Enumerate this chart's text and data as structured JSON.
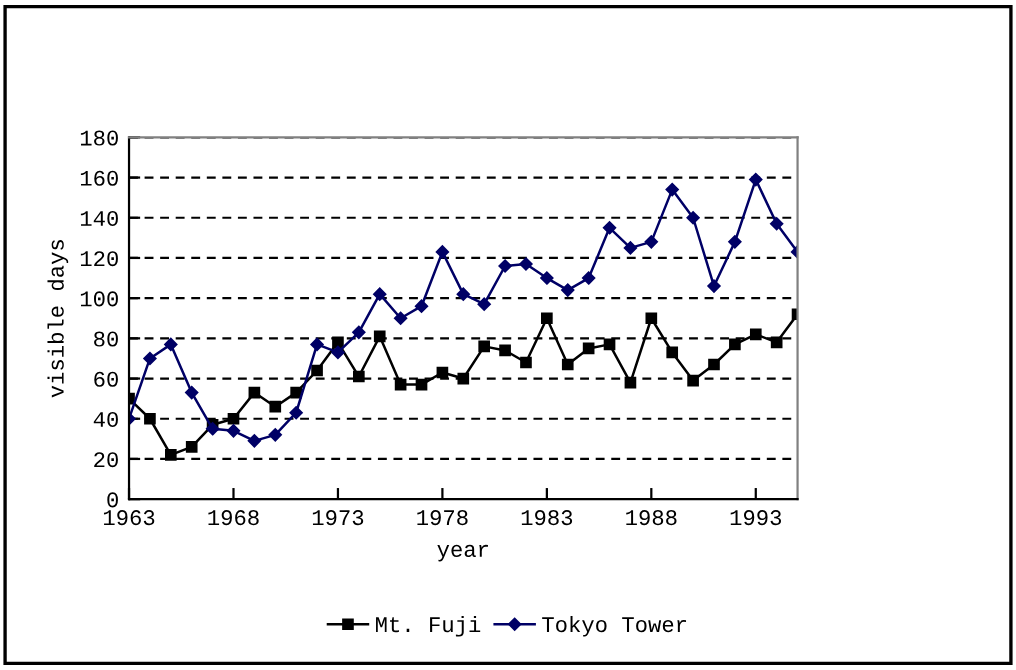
{
  "chart_data": {
    "type": "line",
    "xlabel": "year",
    "ylabel": "visible days",
    "x": [
      1963,
      1964,
      1965,
      1966,
      1967,
      1968,
      1969,
      1970,
      1971,
      1972,
      1973,
      1974,
      1975,
      1976,
      1977,
      1978,
      1979,
      1980,
      1981,
      1982,
      1983,
      1984,
      1985,
      1986,
      1987,
      1988,
      1989,
      1990,
      1991,
      1992,
      1993,
      1994,
      1995
    ],
    "series": [
      {
        "name": "Mt. Fuji",
        "color": "#000000",
        "marker": "square",
        "values": [
          50,
          40,
          22,
          26,
          37,
          40,
          53,
          46,
          53,
          64,
          78,
          61,
          81,
          57,
          57,
          63,
          60,
          76,
          74,
          68,
          90,
          67,
          75,
          77,
          58,
          90,
          73,
          59,
          67,
          77,
          82,
          78,
          92
        ]
      },
      {
        "name": "Tokyo Tower",
        "color": "#000066",
        "marker": "diamond",
        "values": [
          40,
          70,
          77,
          53,
          35,
          34,
          29,
          32,
          43,
          77,
          73,
          83,
          102,
          90,
          96,
          123,
          102,
          97,
          116,
          117,
          110,
          104,
          110,
          135,
          125,
          128,
          154,
          140,
          106,
          128,
          159,
          137,
          123
        ]
      }
    ],
    "xlim": [
      1963,
      1995
    ],
    "xticks": [
      1963,
      1968,
      1973,
      1978,
      1983,
      1988,
      1993
    ],
    "ylim": [
      0,
      180
    ],
    "yticks": [
      0,
      20,
      40,
      60,
      80,
      100,
      120,
      140,
      160,
      180
    ],
    "grid": "y",
    "legend": "bottom",
    "line_style": "solid"
  }
}
